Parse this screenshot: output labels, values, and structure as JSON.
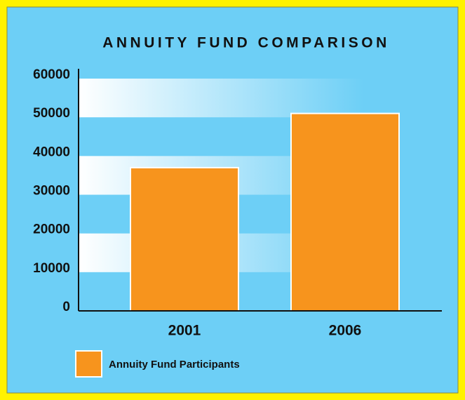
{
  "chart_data": {
    "type": "bar",
    "title": "ANNUITY FUND COMPARISON",
    "categories": [
      "2001",
      "2006"
    ],
    "series": [
      {
        "name": "Annuity Fund Participants",
        "color": "#f7941d",
        "values": [
          37000,
          51000
        ]
      }
    ],
    "ylim": [
      0,
      60000
    ],
    "yticks": [
      0,
      10000,
      20000,
      30000,
      40000,
      50000,
      60000
    ],
    "grid": true,
    "legend": "bottom"
  }
}
